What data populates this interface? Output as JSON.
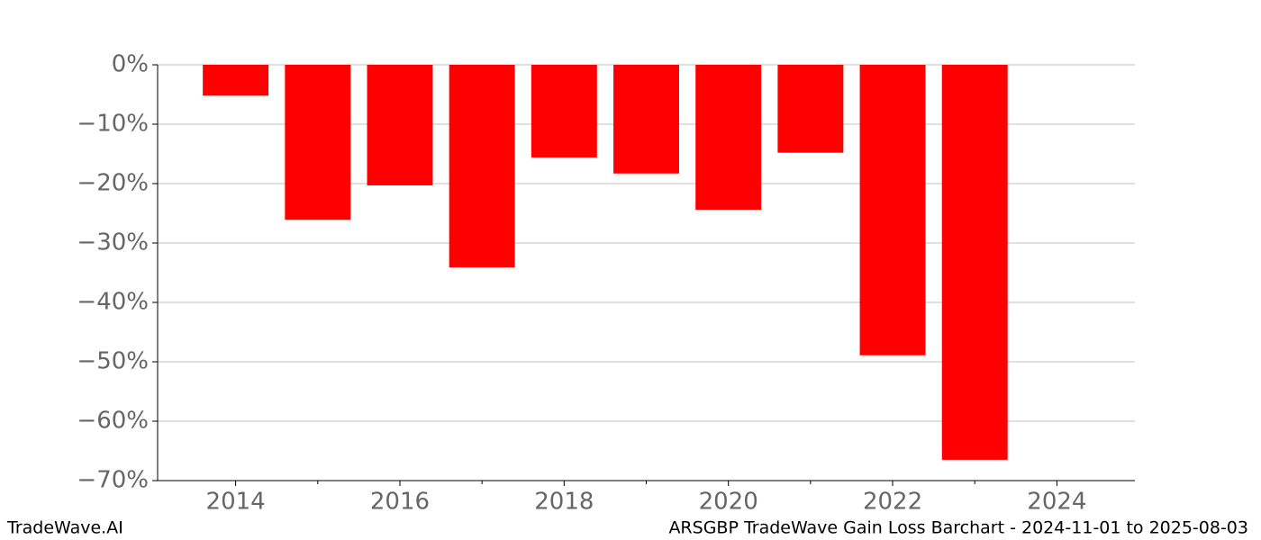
{
  "chart_data": {
    "type": "bar",
    "x": [
      2014,
      2015,
      2016,
      2017,
      2018,
      2019,
      2020,
      2021,
      2022,
      2023
    ],
    "values": [
      -5.2,
      -26.1,
      -20.3,
      -34.1,
      -15.6,
      -18.3,
      -24.4,
      -14.8,
      -48.9,
      -66.5
    ],
    "color": "#ff0000",
    "bar_width": 0.8,
    "xlim": [
      2013.05,
      2024.95
    ],
    "xticks": [
      2014,
      2016,
      2018,
      2020,
      2022,
      2024
    ],
    "xminorticks": [
      2015,
      2017,
      2019,
      2021,
      2023
    ],
    "ylim": [
      -70,
      0
    ],
    "yticks": [
      {
        "value": 0,
        "label": "0%"
      },
      {
        "value": -10,
        "label": "−10%"
      },
      {
        "value": -20,
        "label": "−20%"
      },
      {
        "value": -30,
        "label": "−30%"
      },
      {
        "value": -40,
        "label": "−40%"
      },
      {
        "value": -50,
        "label": "−50%"
      },
      {
        "value": -60,
        "label": "−60%"
      },
      {
        "value": -70,
        "label": "−70%"
      }
    ],
    "grid": true,
    "brand": "TradeWave.AI",
    "title": "ARSGBP TradeWave Gain Loss Barchart - 2024-11-01 to 2025-08-03"
  }
}
